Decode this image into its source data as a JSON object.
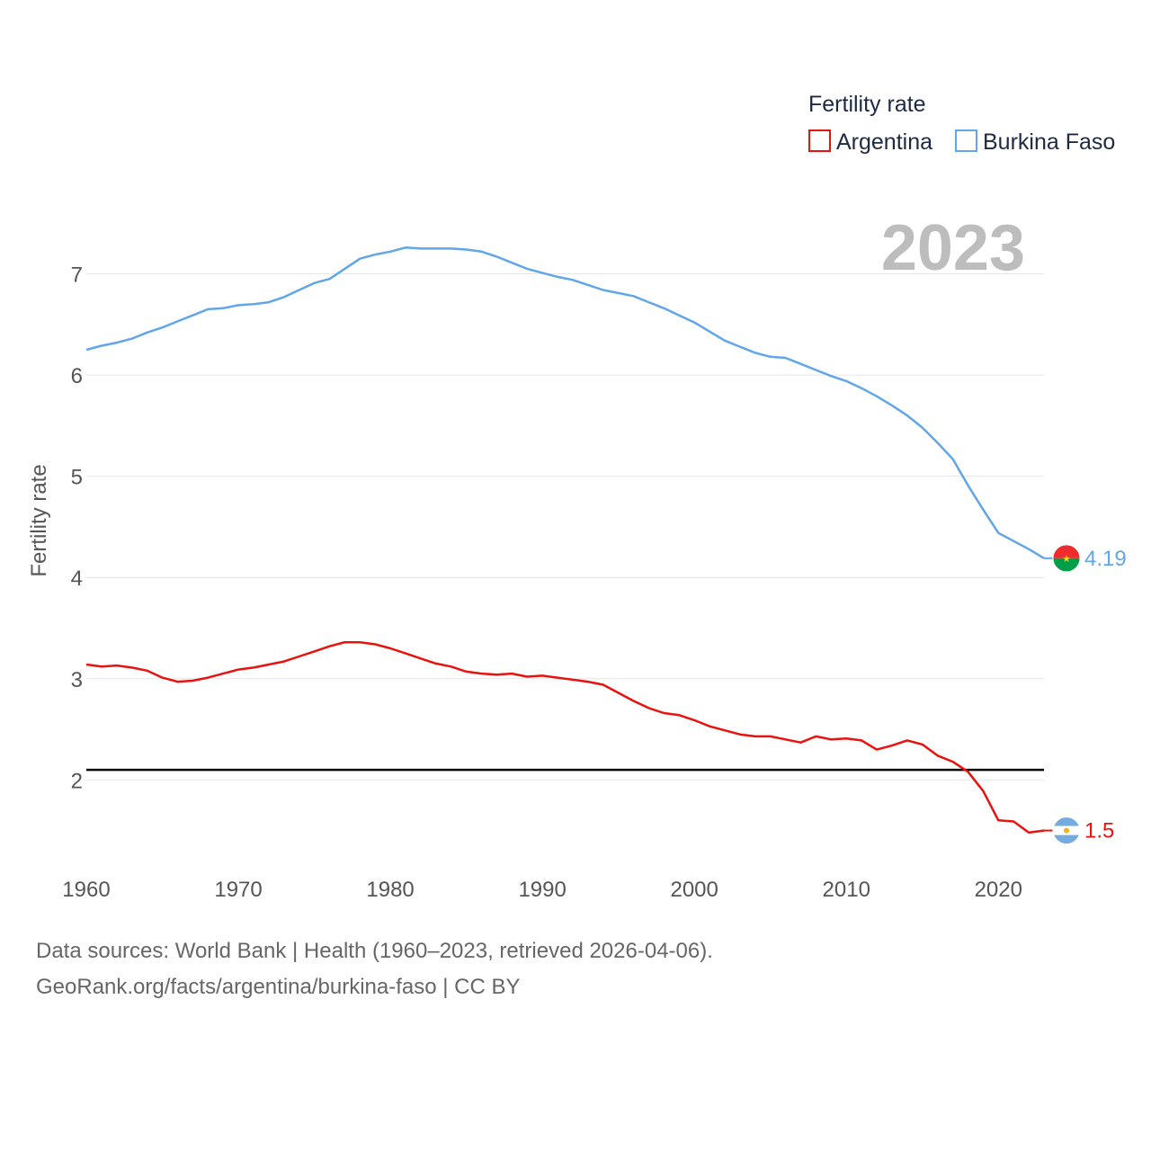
{
  "chart_data": {
    "type": "line",
    "title": "",
    "ylabel": "Fertility rate",
    "xlabel": "",
    "xlim": [
      1960,
      2023
    ],
    "ylim": [
      1.15,
      7.6
    ],
    "yticks": [
      2,
      3,
      4,
      5,
      6,
      7
    ],
    "xticks": [
      1960,
      1970,
      1980,
      1990,
      2000,
      2010,
      2020
    ],
    "year_display": "2023",
    "reference_line": {
      "y": 2.1,
      "color": "#000000"
    },
    "legend": {
      "title": "Fertility rate",
      "position": "top-right"
    },
    "x": [
      1960,
      1961,
      1962,
      1963,
      1964,
      1965,
      1966,
      1967,
      1968,
      1969,
      1970,
      1971,
      1972,
      1973,
      1974,
      1975,
      1976,
      1977,
      1978,
      1979,
      1980,
      1981,
      1982,
      1983,
      1984,
      1985,
      1986,
      1987,
      1988,
      1989,
      1990,
      1991,
      1992,
      1993,
      1994,
      1995,
      1996,
      1997,
      1998,
      1999,
      2000,
      2001,
      2002,
      2003,
      2004,
      2005,
      2006,
      2007,
      2008,
      2009,
      2010,
      2011,
      2012,
      2013,
      2014,
      2015,
      2016,
      2017,
      2018,
      2019,
      2020,
      2021,
      2022,
      2023
    ],
    "series": [
      {
        "name": "Argentina",
        "color": "#e8120f",
        "end_label": "1.5",
        "flag": "argentina",
        "values": [
          3.14,
          3.12,
          3.13,
          3.11,
          3.08,
          3.01,
          2.97,
          2.98,
          3.01,
          3.05,
          3.09,
          3.11,
          3.14,
          3.17,
          3.22,
          3.27,
          3.32,
          3.36,
          3.36,
          3.34,
          3.3,
          3.25,
          3.2,
          3.15,
          3.12,
          3.07,
          3.05,
          3.04,
          3.05,
          3.02,
          3.03,
          3.01,
          2.99,
          2.97,
          2.94,
          2.86,
          2.78,
          2.71,
          2.66,
          2.64,
          2.59,
          2.53,
          2.49,
          2.45,
          2.43,
          2.43,
          2.4,
          2.37,
          2.43,
          2.4,
          2.41,
          2.39,
          2.3,
          2.34,
          2.39,
          2.35,
          2.24,
          2.18,
          2.08,
          1.89,
          1.6,
          1.59,
          1.48,
          1.5
        ]
      },
      {
        "name": "Burkina Faso",
        "color": "#61a6e8",
        "end_label": "4.19",
        "flag": "burkina-faso",
        "values": [
          6.25,
          6.29,
          6.32,
          6.36,
          6.42,
          6.47,
          6.53,
          6.59,
          6.65,
          6.66,
          6.69,
          6.7,
          6.72,
          6.77,
          6.84,
          6.91,
          6.95,
          7.05,
          7.15,
          7.19,
          7.22,
          7.26,
          7.25,
          7.25,
          7.25,
          7.24,
          7.22,
          7.17,
          7.11,
          7.05,
          7.01,
          6.97,
          6.94,
          6.89,
          6.84,
          6.81,
          6.78,
          6.72,
          6.66,
          6.59,
          6.52,
          6.43,
          6.34,
          6.28,
          6.22,
          6.18,
          6.17,
          6.11,
          6.05,
          5.99,
          5.94,
          5.87,
          5.79,
          5.7,
          5.6,
          5.48,
          5.33,
          5.17,
          4.91,
          4.67,
          4.44,
          4.36,
          4.28,
          4.19
        ]
      }
    ]
  },
  "source_line1": "Data sources: World Bank | Health (1960–2023, retrieved 2026-04-06).",
  "source_line2": "GeoRank.org/facts/argentina/burkina-faso | CC BY"
}
